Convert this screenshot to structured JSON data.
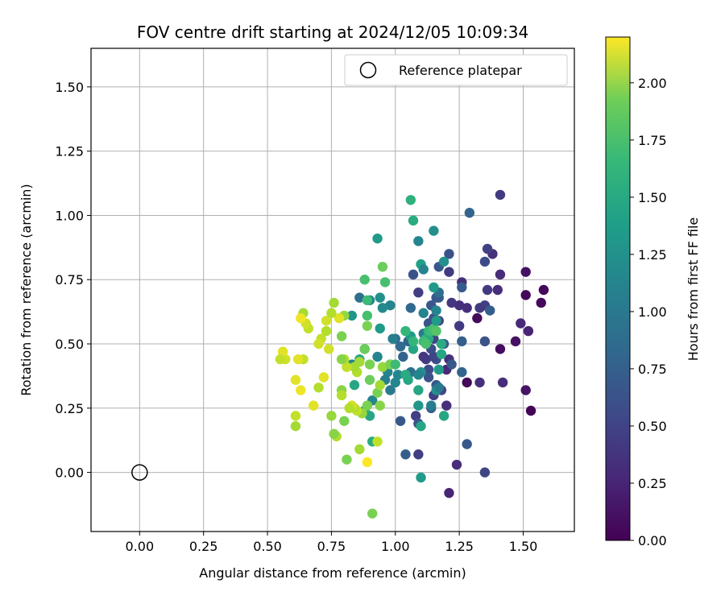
{
  "chart_data": {
    "type": "scatter",
    "title": "FOV centre drift starting at 2024/12/05 10:09:34",
    "xlabel": "Angular distance from reference (arcmin)",
    "ylabel": "Rotation from reference (arcmin)",
    "xlim": [
      -0.19,
      1.7
    ],
    "ylim": [
      -0.23,
      1.65
    ],
    "xticks": [
      "0.00",
      "0.25",
      "0.50",
      "0.75",
      "1.00",
      "1.25",
      "1.50"
    ],
    "yticks": [
      "0.00",
      "0.25",
      "0.50",
      "0.75",
      "1.00",
      "1.25",
      "1.50"
    ],
    "grid": true,
    "legend": {
      "position": "top-right",
      "entries": [
        {
          "label": "Reference platepar",
          "marker": "open-circle"
        }
      ]
    },
    "reference_point": {
      "x": 0.0,
      "y": 0.0
    },
    "colorbar": {
      "label": "Hours from first FF file",
      "colormap": "viridis",
      "range": [
        0.0,
        2.2
      ],
      "ticks": [
        "0.00",
        "0.25",
        "0.50",
        "0.75",
        "1.00",
        "1.25",
        "1.50",
        "1.75",
        "2.00"
      ]
    },
    "points": [
      [
        1.53,
        0.24,
        0.02
      ],
      [
        1.57,
        0.66,
        0.05
      ],
      [
        1.58,
        0.71,
        0.04
      ],
      [
        1.51,
        0.78,
        0.1
      ],
      [
        1.51,
        0.69,
        0.04
      ],
      [
        1.52,
        0.55,
        0.22
      ],
      [
        1.49,
        0.58,
        0.25
      ],
      [
        1.47,
        0.51,
        0.1
      ],
      [
        1.51,
        0.32,
        0.12
      ],
      [
        1.41,
        0.48,
        0.08
      ],
      [
        1.42,
        0.35,
        0.28
      ],
      [
        1.41,
        1.08,
        0.38
      ],
      [
        1.41,
        0.77,
        0.28
      ],
      [
        1.4,
        0.71,
        0.28
      ],
      [
        1.38,
        0.85,
        0.3
      ],
      [
        1.36,
        0.87,
        0.42
      ],
      [
        1.36,
        0.71,
        0.38
      ],
      [
        1.35,
        0.82,
        0.5
      ],
      [
        1.35,
        0.65,
        0.42
      ],
      [
        1.33,
        0.64,
        0.38
      ],
      [
        1.32,
        0.6,
        0.05
      ],
      [
        1.33,
        0.35,
        0.3
      ],
      [
        1.35,
        0.51,
        0.55
      ],
      [
        1.37,
        0.63,
        0.65
      ],
      [
        1.35,
        0.0,
        0.45
      ],
      [
        1.29,
        1.01,
        0.7
      ],
      [
        1.28,
        0.64,
        0.3
      ],
      [
        1.28,
        0.35,
        0.05
      ],
      [
        1.28,
        0.11,
        0.6
      ],
      [
        1.26,
        0.39,
        0.7
      ],
      [
        1.26,
        0.51,
        0.65
      ],
      [
        1.25,
        0.57,
        0.38
      ],
      [
        1.26,
        0.74,
        0.3
      ],
      [
        1.26,
        0.72,
        0.62
      ],
      [
        1.25,
        0.65,
        0.3
      ],
      [
        1.24,
        0.03,
        0.28
      ],
      [
        1.22,
        0.66,
        0.35
      ],
      [
        1.21,
        0.85,
        0.55
      ],
      [
        1.21,
        0.78,
        0.38
      ],
      [
        1.21,
        0.44,
        0.3
      ],
      [
        1.2,
        0.4,
        0.25
      ],
      [
        1.22,
        0.42,
        0.6
      ],
      [
        1.2,
        0.26,
        0.3
      ],
      [
        1.21,
        -0.08,
        0.22
      ],
      [
        1.19,
        0.5,
        0.6
      ],
      [
        1.18,
        0.32,
        0.45
      ],
      [
        1.17,
        0.8,
        0.6
      ],
      [
        1.17,
        0.68,
        0.65
      ],
      [
        1.16,
        0.44,
        0.55
      ],
      [
        1.17,
        0.59,
        0.45
      ],
      [
        1.16,
        0.34,
        0.6
      ],
      [
        1.15,
        0.6,
        0.55
      ],
      [
        1.15,
        0.52,
        0.45
      ],
      [
        1.15,
        0.45,
        0.45
      ],
      [
        1.15,
        0.3,
        0.4
      ],
      [
        1.14,
        0.56,
        0.6
      ],
      [
        1.14,
        0.65,
        0.6
      ],
      [
        1.16,
        0.68,
        0.6
      ],
      [
        1.17,
        0.7,
        0.8
      ],
      [
        1.19,
        0.82,
        1.1
      ],
      [
        1.15,
        0.72,
        1.2
      ],
      [
        1.15,
        0.94,
        1.1
      ],
      [
        1.13,
        0.58,
        0.55
      ],
      [
        1.14,
        0.48,
        0.5
      ],
      [
        1.13,
        0.4,
        0.5
      ],
      [
        1.13,
        0.37,
        0.55
      ],
      [
        1.14,
        0.25,
        0.65
      ],
      [
        1.12,
        0.44,
        0.4
      ],
      [
        1.11,
        0.45,
        0.35
      ],
      [
        1.09,
        0.07,
        0.4
      ],
      [
        1.09,
        0.7,
        0.4
      ],
      [
        1.08,
        0.22,
        0.4
      ],
      [
        1.09,
        0.19,
        0.55
      ],
      [
        1.07,
        0.77,
        0.55
      ],
      [
        1.06,
        0.64,
        0.75
      ],
      [
        1.06,
        0.39,
        0.8
      ],
      [
        1.05,
        0.51,
        0.7
      ],
      [
        1.04,
        0.07,
        0.65
      ],
      [
        1.03,
        0.45,
        0.7
      ],
      [
        1.02,
        0.49,
        0.75
      ],
      [
        1.02,
        0.2,
        0.6
      ],
      [
        1.0,
        0.52,
        0.8
      ],
      [
        0.99,
        0.52,
        0.95
      ],
      [
        0.98,
        0.42,
        0.95
      ],
      [
        0.98,
        0.32,
        0.9
      ],
      [
        0.98,
        0.65,
        1.0
      ],
      [
        1.01,
        0.38,
        1.0
      ],
      [
        1.0,
        0.35,
        1.0
      ],
      [
        0.97,
        0.39,
        1.0
      ],
      [
        0.96,
        0.36,
        0.95
      ],
      [
        0.95,
        0.64,
        1.05
      ],
      [
        0.94,
        0.68,
        1.1
      ],
      [
        0.93,
        0.45,
        1.0
      ],
      [
        0.91,
        0.28,
        1.0
      ],
      [
        0.9,
        0.67,
        1.0
      ],
      [
        0.86,
        0.68,
        0.8
      ],
      [
        0.93,
        0.91,
        1.2
      ],
      [
        0.94,
        0.56,
        1.2
      ],
      [
        0.88,
        0.48,
        1.35
      ],
      [
        0.86,
        0.44,
        1.3
      ],
      [
        0.83,
        0.61,
        1.15
      ],
      [
        0.83,
        0.42,
        1.0
      ],
      [
        0.84,
        0.34,
        1.3
      ],
      [
        0.88,
        0.24,
        1.25
      ],
      [
        0.9,
        0.22,
        1.3
      ],
      [
        0.91,
        0.12,
        1.35
      ],
      [
        1.06,
        1.06,
        1.4
      ],
      [
        1.07,
        0.98,
        1.35
      ],
      [
        1.09,
        0.9,
        1.0
      ],
      [
        1.1,
        0.81,
        1.25
      ],
      [
        1.11,
        0.79,
        1.0
      ],
      [
        1.11,
        0.62,
        1.0
      ],
      [
        1.11,
        0.54,
        0.9
      ],
      [
        1.12,
        0.52,
        1.4
      ],
      [
        1.13,
        0.52,
        1.35
      ],
      [
        1.13,
        0.55,
        1.45
      ],
      [
        1.14,
        0.55,
        1.5
      ],
      [
        1.15,
        0.56,
        1.55
      ],
      [
        1.16,
        0.55,
        1.6
      ],
      [
        1.16,
        0.59,
        1.2
      ],
      [
        1.16,
        0.32,
        1.1
      ],
      [
        1.16,
        0.63,
        1.0
      ],
      [
        1.17,
        0.33,
        0.9
      ],
      [
        1.17,
        0.4,
        1.2
      ],
      [
        1.18,
        0.5,
        1.35
      ],
      [
        1.18,
        0.46,
        1.3
      ],
      [
        1.19,
        0.22,
        1.3
      ],
      [
        1.1,
        0.39,
        1.1
      ],
      [
        1.09,
        0.38,
        1.0
      ],
      [
        1.1,
        0.18,
        1.3
      ],
      [
        1.09,
        0.32,
        1.3
      ],
      [
        1.09,
        0.26,
        1.15
      ],
      [
        1.1,
        -0.02,
        1.2
      ],
      [
        1.07,
        0.48,
        1.3
      ],
      [
        1.06,
        0.53,
        1.2
      ],
      [
        1.05,
        0.36,
        1.3
      ],
      [
        1.04,
        0.38,
        1.35
      ],
      [
        0.96,
        0.74,
        1.55
      ],
      [
        0.95,
        0.8,
        1.7
      ],
      [
        0.88,
        0.75,
        1.55
      ],
      [
        0.89,
        0.67,
        1.5
      ],
      [
        0.89,
        0.61,
        1.55
      ],
      [
        0.89,
        0.57,
        1.75
      ],
      [
        0.9,
        0.42,
        1.75
      ],
      [
        0.9,
        0.36,
        1.7
      ],
      [
        0.93,
        0.31,
        1.75
      ],
      [
        0.94,
        0.26,
        1.8
      ],
      [
        0.91,
        -0.16,
        1.75
      ],
      [
        0.89,
        0.26,
        1.75
      ],
      [
        0.88,
        0.48,
        1.7
      ],
      [
        0.87,
        0.23,
        1.85
      ],
      [
        0.86,
        0.43,
        1.9
      ],
      [
        0.85,
        0.39,
        1.95
      ],
      [
        0.85,
        0.24,
        2.0
      ],
      [
        0.84,
        0.41,
        1.9
      ],
      [
        0.84,
        0.25,
        1.95
      ],
      [
        0.83,
        0.26,
        2.05
      ],
      [
        0.82,
        0.25,
        1.95
      ],
      [
        0.81,
        0.41,
        2.0
      ],
      [
        0.8,
        0.44,
        1.95
      ],
      [
        0.8,
        0.61,
        1.85
      ],
      [
        0.79,
        0.44,
        1.8
      ],
      [
        0.79,
        0.32,
        1.8
      ],
      [
        0.79,
        0.3,
        1.95
      ],
      [
        0.8,
        0.2,
        1.75
      ],
      [
        0.81,
        0.05,
        1.75
      ],
      [
        0.79,
        0.53,
        1.75
      ],
      [
        0.78,
        0.6,
        2.1
      ],
      [
        0.77,
        0.14,
        1.95
      ],
      [
        0.76,
        0.15,
        1.8
      ],
      [
        0.75,
        0.22,
        1.85
      ],
      [
        0.76,
        0.66,
        1.9
      ],
      [
        0.75,
        0.62,
        1.95
      ],
      [
        0.74,
        0.48,
        2.05
      ],
      [
        0.73,
        0.59,
        2.05
      ],
      [
        0.73,
        0.55,
        1.95
      ],
      [
        0.72,
        0.37,
        2.1
      ],
      [
        0.71,
        0.52,
        2.0
      ],
      [
        0.7,
        0.5,
        2.05
      ],
      [
        0.7,
        0.33,
        1.95
      ],
      [
        0.68,
        0.26,
        2.1
      ],
      [
        0.66,
        0.56,
        2.0
      ],
      [
        0.65,
        0.58,
        2.05
      ],
      [
        0.64,
        0.62,
        1.9
      ],
      [
        0.64,
        0.44,
        2.0
      ],
      [
        0.63,
        0.32,
        2.15
      ],
      [
        0.63,
        0.6,
        2.15
      ],
      [
        0.62,
        0.44,
        2.1
      ],
      [
        0.61,
        0.36,
        2.1
      ],
      [
        0.61,
        0.22,
        2.0
      ],
      [
        0.61,
        0.18,
        1.9
      ],
      [
        0.57,
        0.44,
        2.05
      ],
      [
        0.56,
        0.47,
        2.1
      ],
      [
        0.55,
        0.44,
        2.0
      ],
      [
        0.89,
        0.04,
        2.2
      ],
      [
        0.86,
        0.09,
        1.9
      ],
      [
        0.93,
        0.12,
        2.0
      ],
      [
        0.95,
        0.41,
        1.85
      ],
      [
        0.94,
        0.34,
        1.9
      ],
      [
        0.98,
        0.42,
        1.75
      ],
      [
        1.0,
        0.42,
        1.5
      ],
      [
        1.04,
        0.55,
        1.45
      ],
      [
        1.07,
        0.51,
        1.45
      ],
      [
        1.11,
        0.51,
        1.5
      ],
      [
        1.12,
        0.5,
        1.55
      ],
      [
        1.14,
        0.26,
        0.95
      ]
    ]
  }
}
